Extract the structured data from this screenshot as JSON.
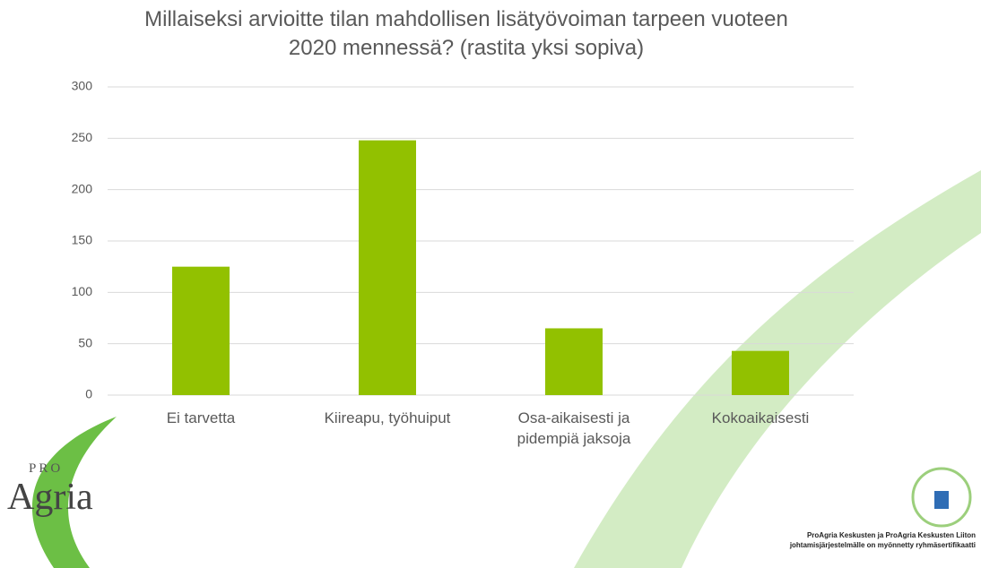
{
  "chart_data": {
    "type": "bar",
    "title": "Millaiseksi arvioitte tilan mahdollisen lisätyövoiman tarpeen vuoteen 2020 mennessä? (rastita yksi sopiva)",
    "categories": [
      "Ei tarvetta",
      "Kiireapu, työhuiput",
      "Osa-aikaisesti ja pidempiä jaksoja",
      "Kokoaikaisesti"
    ],
    "values": [
      125,
      248,
      65,
      43
    ],
    "color": "#92c100",
    "ylim": [
      0,
      300
    ],
    "yticks": [
      0,
      50,
      100,
      150,
      200,
      250,
      300
    ],
    "grid": true
  },
  "logo": {
    "top": "PRO",
    "bottom": "Agria"
  },
  "footer": {
    "line1": "ProAgria Keskusten ja ProAgria Keskusten Liiton",
    "line2": "johtamisjärjestelmälle on myönnetty ryhmäsertifikaatti"
  }
}
